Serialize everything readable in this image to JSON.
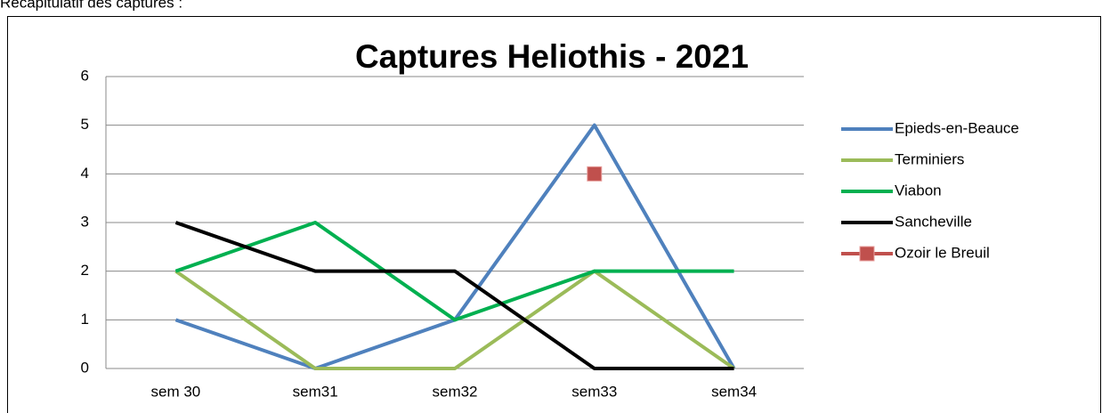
{
  "heading": "Récapitulatif des captures :",
  "chart_data": {
    "type": "line",
    "title": "Captures Heliothis - 2021",
    "categories": [
      "sem 30",
      "sem31",
      "sem32",
      "sem33",
      "sem34"
    ],
    "series": [
      {
        "name": "Epieds-en-Beauce",
        "color": "#4f81bd",
        "values": [
          1,
          0,
          1,
          5,
          0
        ]
      },
      {
        "name": "Terminiers",
        "color": "#9bbb59",
        "values": [
          2,
          0,
          0,
          2,
          0
        ]
      },
      {
        "name": "Viabon",
        "color": "#00b050",
        "values": [
          2,
          3,
          1,
          2,
          2
        ]
      },
      {
        "name": "Sancheville",
        "color": "#000000",
        "values": [
          3,
          2,
          2,
          0,
          0
        ]
      },
      {
        "name": "Ozoir le Breuil",
        "color": "#c0504d",
        "marker": "square",
        "values": [
          null,
          null,
          null,
          4,
          null
        ]
      }
    ],
    "ylim": [
      0,
      6
    ],
    "yticks": [
      0,
      1,
      2,
      3,
      4,
      5,
      6
    ],
    "grid": true,
    "legend": "right"
  }
}
